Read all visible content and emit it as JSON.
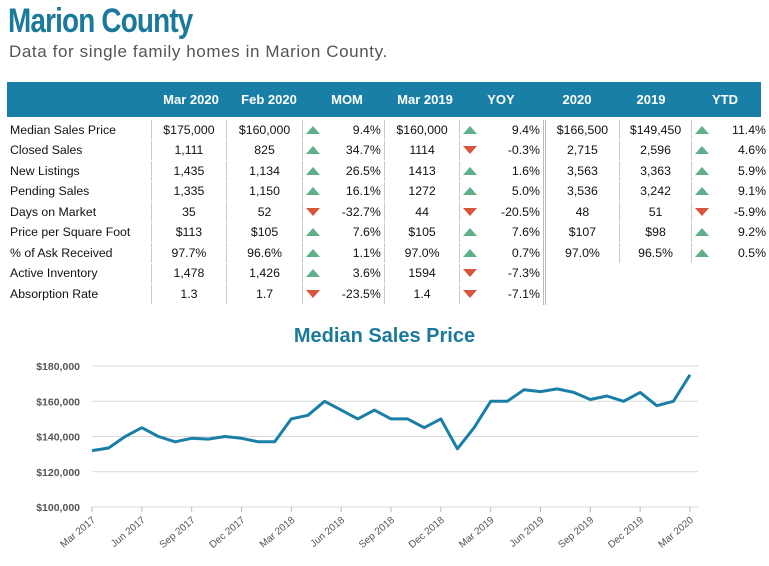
{
  "title": "Marion County",
  "subtitle": "Data for single family homes in Marion County.",
  "table": {
    "headers": [
      "Mar 2020",
      "Feb 2020",
      "MOM",
      "Mar 2019",
      "YOY",
      "2020",
      "2019",
      "YTD"
    ],
    "rows": [
      {
        "label": "Median Sales Price",
        "mar2020": "$175,000",
        "feb2020": "$160,000",
        "mom": "9.4%",
        "mom_dir": "up",
        "mar2019": "$160,000",
        "yoy": "9.4%",
        "yoy_dir": "up",
        "y2020": "$166,500",
        "y2019": "$149,450",
        "ytd": "11.4%",
        "ytd_dir": "up"
      },
      {
        "label": "Closed Sales",
        "mar2020": "1,111",
        "feb2020": "825",
        "mom": "34.7%",
        "mom_dir": "up",
        "mar2019": "1114",
        "yoy": "-0.3%",
        "yoy_dir": "down",
        "y2020": "2,715",
        "y2019": "2,596",
        "ytd": "4.6%",
        "ytd_dir": "up"
      },
      {
        "label": "New Listings",
        "mar2020": "1,435",
        "feb2020": "1,134",
        "mom": "26.5%",
        "mom_dir": "up",
        "mar2019": "1413",
        "yoy": "1.6%",
        "yoy_dir": "up",
        "y2020": "3,563",
        "y2019": "3,363",
        "ytd": "5.9%",
        "ytd_dir": "up"
      },
      {
        "label": "Pending Sales",
        "mar2020": "1,335",
        "feb2020": "1,150",
        "mom": "16.1%",
        "mom_dir": "up",
        "mar2019": "1272",
        "yoy": "5.0%",
        "yoy_dir": "up",
        "y2020": "3,536",
        "y2019": "3,242",
        "ytd": "9.1%",
        "ytd_dir": "up"
      },
      {
        "label": "Days on Market",
        "mar2020": "35",
        "feb2020": "52",
        "mom": "-32.7%",
        "mom_dir": "down",
        "mar2019": "44",
        "yoy": "-20.5%",
        "yoy_dir": "down",
        "y2020": "48",
        "y2019": "51",
        "ytd": "-5.9%",
        "ytd_dir": "down"
      },
      {
        "label": "Price per Square Foot",
        "mar2020": "$113",
        "feb2020": "$105",
        "mom": "7.6%",
        "mom_dir": "up",
        "mar2019": "$105",
        "yoy": "7.6%",
        "yoy_dir": "up",
        "y2020": "$107",
        "y2019": "$98",
        "ytd": "9.2%",
        "ytd_dir": "up"
      },
      {
        "label": "% of Ask Received",
        "mar2020": "97.7%",
        "feb2020": "96.6%",
        "mom": "1.1%",
        "mom_dir": "up",
        "mar2019": "97.0%",
        "yoy": "0.7%",
        "yoy_dir": "up",
        "y2020": "97.0%",
        "y2019": "96.5%",
        "ytd": "0.5%",
        "ytd_dir": "up"
      },
      {
        "label": "Active Inventory",
        "mar2020": "1,478",
        "feb2020": "1,426",
        "mom": "3.6%",
        "mom_dir": "up",
        "mar2019": "1594",
        "yoy": "-7.3%",
        "yoy_dir": "down",
        "y2020": "",
        "y2019": "",
        "ytd": "",
        "ytd_dir": ""
      },
      {
        "label": "Absorption Rate",
        "mar2020": "1.3",
        "feb2020": "1.7",
        "mom": "-23.5%",
        "mom_dir": "down",
        "mar2019": "1.4",
        "yoy": "-7.1%",
        "yoy_dir": "down",
        "y2020": "",
        "y2019": "",
        "ytd": "",
        "ytd_dir": ""
      }
    ]
  },
  "colors": {
    "brand": "#1b7a9c",
    "header_bg": "#1a7fa6",
    "up": "#5fb08a",
    "down": "#d9553b",
    "line": "#1a7fa6"
  },
  "chart_data": {
    "type": "line",
    "title": "Median Sales Price",
    "xlabel": "",
    "ylabel": "",
    "ylim": [
      100000,
      180000
    ],
    "yticks": [
      "$100,000",
      "$120,000",
      "$140,000",
      "$160,000",
      "$180,000"
    ],
    "ytick_values": [
      100000,
      120000,
      140000,
      160000,
      180000
    ],
    "x_tick_labels": [
      "Mar 2017",
      "Jun 2017",
      "Sep 2017",
      "Dec 2017",
      "Mar 2018",
      "Jun 2018",
      "Sep 2018",
      "Dec 2018",
      "Mar 2019",
      "Jun 2019",
      "Sep 2019",
      "Dec 2019",
      "Mar 2020"
    ],
    "x": [
      "Mar 2017",
      "Apr 2017",
      "May 2017",
      "Jun 2017",
      "Jul 2017",
      "Aug 2017",
      "Sep 2017",
      "Oct 2017",
      "Nov 2017",
      "Dec 2017",
      "Jan 2018",
      "Feb 2018",
      "Mar 2018",
      "Apr 2018",
      "May 2018",
      "Jun 2018",
      "Jul 2018",
      "Aug 2018",
      "Sep 2018",
      "Oct 2018",
      "Nov 2018",
      "Dec 2018",
      "Jan 2019",
      "Feb 2019",
      "Mar 2019",
      "Apr 2019",
      "May 2019",
      "Jun 2019",
      "Jul 2019",
      "Aug 2019",
      "Sep 2019",
      "Oct 2019",
      "Nov 2019",
      "Dec 2019",
      "Jan 2020",
      "Feb 2020",
      "Mar 2020"
    ],
    "series": [
      {
        "values": [
          132000,
          133500,
          140000,
          145000,
          140000,
          137000,
          139000,
          138500,
          140000,
          139000,
          137000,
          137000,
          150000,
          152000,
          160000,
          155000,
          150000,
          155000,
          150000,
          150000,
          145000,
          150000,
          133000,
          145000,
          160000,
          160000,
          166500,
          165500,
          167000,
          165000,
          161000,
          163000,
          160000,
          165000,
          157500,
          160000,
          175000
        ]
      }
    ],
    "grid": true,
    "legend": "none"
  }
}
